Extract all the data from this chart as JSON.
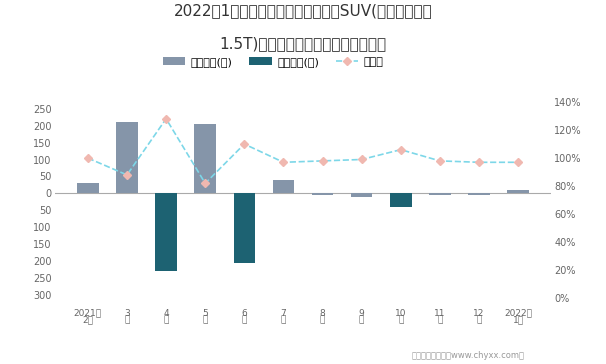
{
  "title_line1": "2022年1月雪佛兰探界者旗下最畅销SUV(雪佛兰探界者",
  "title_line2": "1.5T)近一年库存情况及产销率统计图",
  "x_labels_line1": [
    "2021年",
    "3",
    "4",
    "5",
    "6",
    "7",
    "8",
    "9",
    "10",
    "11",
    "12",
    "2022年"
  ],
  "x_labels_line2": [
    "2月",
    "月",
    "月",
    "月",
    "月",
    "月",
    "月",
    "月",
    "月",
    "月",
    "月",
    "1月"
  ],
  "jiaya_values": [
    30,
    210,
    0,
    205,
    0,
    40,
    -5,
    -10,
    0,
    -5,
    -5,
    10
  ],
  "qingcang_values": [
    0,
    0,
    -230,
    0,
    -205,
    0,
    0,
    0,
    -40,
    0,
    0,
    0
  ],
  "rate_values": [
    1.0,
    0.88,
    1.28,
    0.82,
    1.1,
    0.97,
    0.98,
    0.99,
    1.06,
    0.98,
    0.97,
    0.97
  ],
  "jiaya_color": "#8595a9",
  "qingcang_color": "#1d6272",
  "rate_color": "#7dd7e8",
  "rate_marker_color": "#f0b8b0",
  "ylim_left": [
    -310,
    270
  ],
  "left_ytick_vals": [
    250,
    200,
    150,
    100,
    50,
    0,
    -50,
    -100,
    -150,
    -200,
    -250,
    -300
  ],
  "ylim_right": [
    0.0,
    1.4
  ],
  "right_yticks": [
    0.0,
    0.2,
    0.4,
    0.6,
    0.8,
    1.0,
    1.2,
    1.4
  ],
  "right_ytick_labels": [
    "0%",
    "20%",
    "40%",
    "60%",
    "80%",
    "100%",
    "120%",
    "140%"
  ],
  "background_color": "#ffffff",
  "legend_jiaya": "积压库存(辆)",
  "legend_qingcang": "清仓库存(辆)",
  "legend_rate": "产销率",
  "footer": "制图：智研咨询（www.chyxx.com）"
}
